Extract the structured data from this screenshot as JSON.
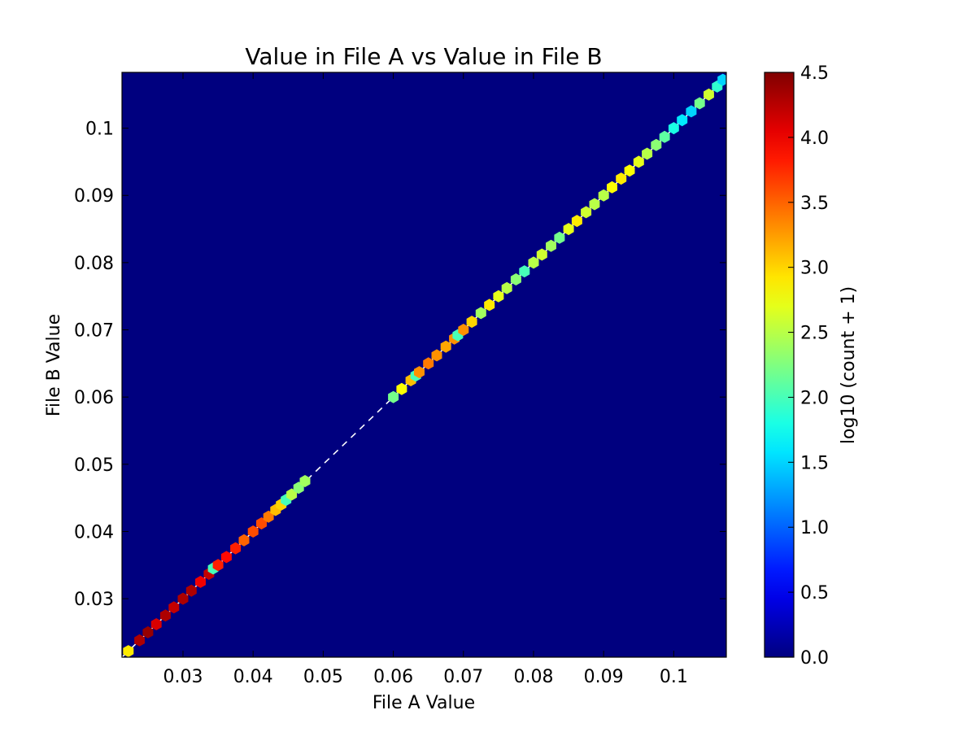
{
  "chart_data": {
    "type": "heatmap",
    "subtype": "hexbin scatter density",
    "title": "Value in File A vs Value in File B",
    "xlabel": "File A Value",
    "ylabel": "File B Value",
    "xlim": [
      0.0213,
      0.1075
    ],
    "ylim": [
      0.0213,
      0.1083
    ],
    "x_ticks": [
      0.03,
      0.04,
      0.05,
      0.06,
      0.07,
      0.08,
      0.09,
      0.1
    ],
    "x_tick_labels": [
      "0.03",
      "0.04",
      "0.05",
      "0.06",
      "0.07",
      "0.08",
      "0.09",
      "0.1"
    ],
    "y_ticks": [
      0.03,
      0.04,
      0.05,
      0.06,
      0.07,
      0.08,
      0.09,
      0.1
    ],
    "y_tick_labels": [
      "0.03",
      "0.04",
      "0.05",
      "0.06",
      "0.07",
      "0.08",
      "0.09",
      "0.1"
    ],
    "grid": false,
    "background_color": "#00007f",
    "colormap": "jet",
    "colorbar": {
      "label": "log10 (count + 1)",
      "range": [
        0.0,
        4.5
      ],
      "ticks": [
        0.0,
        0.5,
        1.0,
        1.5,
        2.0,
        2.5,
        3.0,
        3.5,
        4.0,
        4.5
      ],
      "tick_labels": [
        "0.0",
        "0.5",
        "1.0",
        "1.5",
        "2.0",
        "2.5",
        "3.0",
        "3.5",
        "4.0",
        "4.5"
      ]
    },
    "reference_line": {
      "style": "dashed",
      "color": "#ffffff",
      "from": [
        0.0213,
        0.0213
      ],
      "to": [
        0.1075,
        0.1075
      ]
    },
    "series": [
      {
        "x": [
          0.0222,
          0.0238,
          0.025,
          0.0262,
          0.0275,
          0.0287,
          0.03,
          0.0312,
          0.0325,
          0.0337,
          0.0343,
          0.035,
          0.0362,
          0.0375,
          0.0387,
          0.04,
          0.0412,
          0.0422,
          0.0432,
          0.044,
          0.0447,
          0.0455,
          0.0465,
          0.0474,
          0.06,
          0.0612,
          0.0625,
          0.0632,
          0.0637,
          0.065,
          0.0662,
          0.0675,
          0.0687,
          0.0692,
          0.07,
          0.0712,
          0.0725,
          0.0737,
          0.075,
          0.0762,
          0.0775,
          0.0787,
          0.08,
          0.0812,
          0.0825,
          0.0837,
          0.085,
          0.0862,
          0.0875,
          0.0887,
          0.09,
          0.0912,
          0.0925,
          0.0937,
          0.095,
          0.0962,
          0.0975,
          0.0987,
          0.1,
          0.1012,
          0.1025,
          0.1037,
          0.105,
          0.1062,
          0.107
        ],
        "y": [
          0.0222,
          0.0238,
          0.025,
          0.0262,
          0.0275,
          0.0287,
          0.03,
          0.0312,
          0.0325,
          0.0337,
          0.0345,
          0.035,
          0.0362,
          0.0375,
          0.0387,
          0.04,
          0.0412,
          0.0422,
          0.0432,
          0.044,
          0.0447,
          0.0455,
          0.0465,
          0.0475,
          0.06,
          0.0612,
          0.0625,
          0.0632,
          0.0637,
          0.065,
          0.0662,
          0.0675,
          0.0687,
          0.0692,
          0.07,
          0.0712,
          0.0725,
          0.0737,
          0.075,
          0.0762,
          0.0775,
          0.0787,
          0.08,
          0.0812,
          0.0825,
          0.0837,
          0.085,
          0.0862,
          0.0875,
          0.0887,
          0.09,
          0.0912,
          0.0925,
          0.0937,
          0.095,
          0.0962,
          0.0975,
          0.0987,
          0.1,
          0.1012,
          0.1025,
          0.1037,
          0.105,
          0.1062,
          0.1072
        ],
        "values": [
          2.9,
          4.3,
          4.4,
          4.1,
          4.3,
          4.2,
          4.3,
          4.3,
          4.0,
          4.2,
          2.0,
          3.8,
          3.9,
          3.8,
          3.5,
          3.6,
          3.6,
          3.4,
          3.1,
          3.0,
          2.0,
          2.5,
          2.3,
          2.4,
          2.2,
          2.8,
          3.1,
          2.0,
          3.3,
          3.4,
          3.3,
          3.2,
          3.3,
          2.0,
          3.3,
          3.0,
          2.4,
          2.9,
          2.7,
          2.5,
          2.3,
          2.0,
          2.5,
          2.6,
          2.4,
          2.2,
          2.7,
          2.9,
          2.6,
          2.5,
          2.5,
          2.8,
          2.9,
          2.8,
          2.7,
          2.5,
          2.3,
          2.1,
          1.8,
          1.6,
          1.5,
          2.2,
          2.6,
          1.9,
          1.5
        ]
      }
    ]
  }
}
